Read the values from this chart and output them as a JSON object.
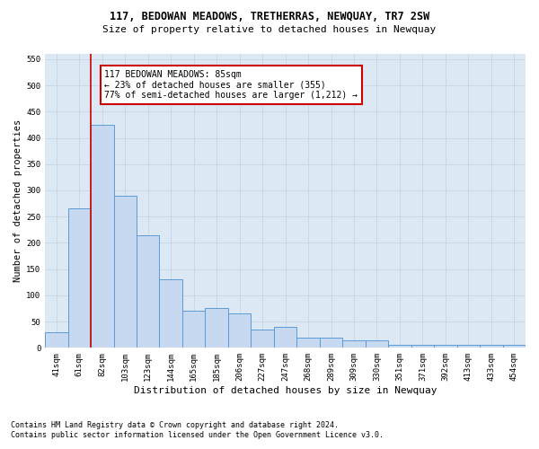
{
  "title": "117, BEDOWAN MEADOWS, TRETHERRAS, NEWQUAY, TR7 2SW",
  "subtitle": "Size of property relative to detached houses in Newquay",
  "xlabel": "Distribution of detached houses by size in Newquay",
  "ylabel": "Number of detached properties",
  "footnote1": "Contains HM Land Registry data © Crown copyright and database right 2024.",
  "footnote2": "Contains public sector information licensed under the Open Government Licence v3.0.",
  "annotation_line1": "117 BEDOWAN MEADOWS: 85sqm",
  "annotation_line2": "← 23% of detached houses are smaller (355)",
  "annotation_line3": "77% of semi-detached houses are larger (1,212) →",
  "bar_color": "#c6d9f1",
  "bar_edge_color": "#5b9bd5",
  "red_line_color": "#cc0000",
  "grid_color": "#c8d8e8",
  "bg_color": "#dce9f5",
  "categories": [
    "41sqm",
    "61sqm",
    "82sqm",
    "103sqm",
    "123sqm",
    "144sqm",
    "165sqm",
    "185sqm",
    "206sqm",
    "227sqm",
    "247sqm",
    "268sqm",
    "289sqm",
    "309sqm",
    "330sqm",
    "351sqm",
    "371sqm",
    "392sqm",
    "413sqm",
    "433sqm",
    "454sqm"
  ],
  "values": [
    30,
    265,
    425,
    290,
    215,
    130,
    70,
    75,
    65,
    35,
    40,
    20,
    20,
    15,
    15,
    5,
    5,
    5,
    5,
    5,
    5
  ],
  "ylim": [
    0,
    560
  ],
  "yticks": [
    0,
    50,
    100,
    150,
    200,
    250,
    300,
    350,
    400,
    450,
    500,
    550
  ],
  "red_line_x": 1.5,
  "title_fontsize": 8.5,
  "subtitle_fontsize": 8,
  "ylabel_fontsize": 7.5,
  "xlabel_fontsize": 8,
  "tick_fontsize": 6.5,
  "footnote_fontsize": 6,
  "annotation_fontsize": 7
}
